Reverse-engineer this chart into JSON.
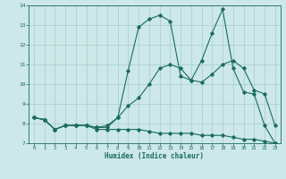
{
  "title": "",
  "xlabel": "Humidex (Indice chaleur)",
  "xlim": [
    -0.5,
    23.5
  ],
  "ylim": [
    7,
    14
  ],
  "bg_color": "#cce8e8",
  "grid_color": "#b0d0d0",
  "line_color": "#1a6b60",
  "line1_x": [
    0,
    1,
    2,
    3,
    4,
    5,
    6,
    7,
    8,
    9,
    10,
    11,
    12,
    13,
    14,
    15,
    16,
    17,
    18,
    19,
    20,
    21,
    22,
    23
  ],
  "line1_y": [
    8.3,
    8.2,
    7.7,
    7.9,
    7.9,
    7.9,
    7.8,
    7.8,
    8.3,
    10.7,
    12.9,
    13.3,
    13.5,
    13.2,
    10.4,
    10.2,
    11.2,
    12.6,
    13.8,
    10.8,
    9.6,
    9.5,
    7.9,
    7.0
  ],
  "line2_x": [
    0,
    1,
    2,
    3,
    4,
    5,
    6,
    7,
    8,
    9,
    10,
    11,
    12,
    13,
    14,
    15,
    16,
    17,
    18,
    19,
    20,
    21,
    22,
    23
  ],
  "line2_y": [
    8.3,
    8.2,
    7.7,
    7.9,
    7.9,
    7.9,
    7.8,
    7.9,
    8.3,
    8.9,
    9.3,
    10.0,
    10.8,
    11.0,
    10.8,
    10.2,
    10.1,
    10.5,
    11.0,
    11.2,
    10.8,
    9.7,
    9.5,
    7.9
  ],
  "line3_x": [
    0,
    1,
    2,
    3,
    4,
    5,
    6,
    7,
    8,
    9,
    10,
    11,
    12,
    13,
    14,
    15,
    16,
    17,
    18,
    19,
    20,
    21,
    22,
    23
  ],
  "line3_y": [
    8.3,
    8.2,
    7.7,
    7.9,
    7.9,
    7.9,
    7.7,
    7.7,
    7.7,
    7.7,
    7.7,
    7.6,
    7.5,
    7.5,
    7.5,
    7.5,
    7.4,
    7.4,
    7.4,
    7.3,
    7.2,
    7.2,
    7.1,
    7.0
  ],
  "marker": "D",
  "markersize": 1.8,
  "linewidth": 0.8
}
